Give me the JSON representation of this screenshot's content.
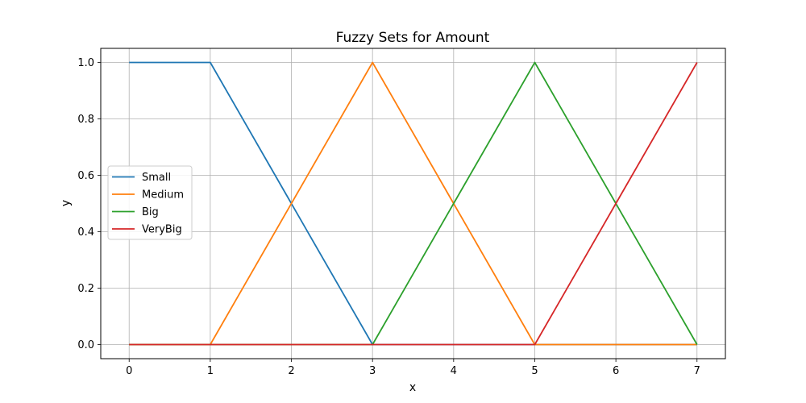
{
  "chart_data": {
    "type": "line",
    "title": "Fuzzy Sets for Amount",
    "xlabel": "x",
    "ylabel": "y",
    "xlim": [
      -0.35,
      7.35
    ],
    "ylim": [
      -0.05,
      1.05
    ],
    "xticks": [
      0,
      1,
      2,
      3,
      4,
      5,
      6,
      7
    ],
    "yticks": [
      0.0,
      0.2,
      0.4,
      0.6,
      0.8,
      1.0
    ],
    "xtick_labels": [
      "0",
      "1",
      "2",
      "3",
      "4",
      "5",
      "6",
      "7"
    ],
    "ytick_labels": [
      "0.0",
      "0.2",
      "0.4",
      "0.6",
      "0.8",
      "1.0"
    ],
    "grid": true,
    "legend_position": "center-left",
    "series": [
      {
        "name": "Small",
        "color": "#1f77b4",
        "x": [
          0,
          1,
          2,
          3,
          4,
          5,
          6,
          7
        ],
        "y": [
          1,
          1,
          0.5,
          0,
          0,
          0,
          0,
          0
        ]
      },
      {
        "name": "Medium",
        "color": "#ff7f0e",
        "x": [
          0,
          1,
          2,
          3,
          4,
          5,
          6,
          7
        ],
        "y": [
          0,
          0,
          0.5,
          1,
          0.5,
          0,
          0,
          0
        ]
      },
      {
        "name": "Big",
        "color": "#2ca02c",
        "x": [
          0,
          1,
          2,
          3,
          4,
          5,
          6,
          7
        ],
        "y": [
          0,
          0,
          0,
          0,
          0.5,
          1,
          0.5,
          0
        ]
      },
      {
        "name": "VeryBig",
        "color": "#d62728",
        "x": [
          0,
          1,
          2,
          3,
          4,
          5,
          6,
          7
        ],
        "y": [
          0,
          0,
          0,
          0,
          0,
          0,
          0.5,
          1
        ]
      }
    ]
  }
}
